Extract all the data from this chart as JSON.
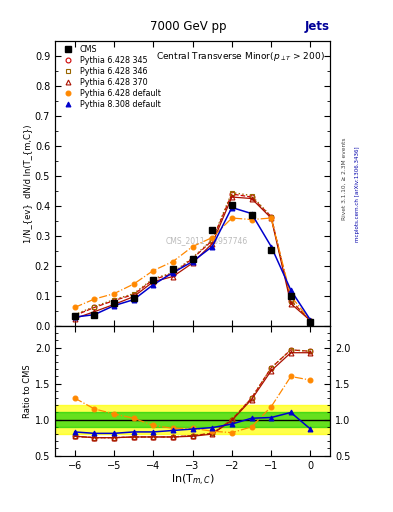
{
  "title_top": "7000 GeV pp",
  "title_right": "Jets",
  "plot_title": "Central Transverse Minor(p_{#surT} > 200)",
  "xlabel": "ln(T_{m,C})",
  "ylabel_main": "1/N_{ev}  dN/d ln(T_{m,C})",
  "ylabel_ratio": "Ratio to CMS",
  "watermark": "CMS_2011_S8957746",
  "rivet_label": "Rivet 3.1.10, ≥ 2.3M events",
  "arxiv_label": "mcplots.cern.ch [arXiv:1306.3436]",
  "x_main": [
    -6.0,
    -5.5,
    -5.0,
    -4.5,
    -4.0,
    -3.5,
    -3.0,
    -2.5,
    -2.0,
    -1.5,
    -1.0,
    -0.5,
    0.0
  ],
  "cms_y": [
    0.033,
    0.038,
    0.077,
    0.095,
    0.155,
    0.19,
    0.225,
    0.32,
    0.405,
    0.37,
    0.255,
    0.1,
    0.015
  ],
  "p345_y": [
    0.035,
    0.062,
    0.085,
    0.105,
    0.155,
    0.175,
    0.225,
    0.285,
    0.44,
    0.43,
    0.365,
    0.085,
    0.018
  ],
  "p346_y": [
    0.038,
    0.065,
    0.088,
    0.108,
    0.158,
    0.178,
    0.228,
    0.288,
    0.445,
    0.435,
    0.365,
    0.085,
    0.018
  ],
  "p370_y": [
    0.025,
    0.048,
    0.072,
    0.098,
    0.148,
    0.165,
    0.21,
    0.275,
    0.43,
    0.425,
    0.36,
    0.075,
    0.018
  ],
  "pdef_y": [
    0.062,
    0.09,
    0.108,
    0.14,
    0.185,
    0.215,
    0.265,
    0.295,
    0.36,
    0.355,
    0.36,
    0.1,
    0.018
  ],
  "p8def_y": [
    0.03,
    0.038,
    0.068,
    0.088,
    0.138,
    0.178,
    0.215,
    0.265,
    0.395,
    0.375,
    0.265,
    0.12,
    0.02
  ],
  "x_ratio": [
    -6.0,
    -5.5,
    -5.0,
    -4.5,
    -4.0,
    -3.5,
    -3.0,
    -2.5,
    -2.0,
    -1.5,
    -1.0,
    -0.5,
    0.0
  ],
  "r345_y": [
    0.77,
    0.75,
    0.75,
    0.76,
    0.76,
    0.76,
    0.78,
    0.81,
    1.0,
    1.3,
    1.72,
    1.97,
    1.95
  ],
  "r346_y": [
    0.77,
    0.75,
    0.75,
    0.76,
    0.76,
    0.76,
    0.78,
    0.81,
    1.0,
    1.3,
    1.72,
    1.97,
    1.95
  ],
  "r370_y": [
    0.77,
    0.75,
    0.75,
    0.76,
    0.76,
    0.76,
    0.77,
    0.8,
    0.99,
    1.28,
    1.68,
    1.93,
    1.93
  ],
  "rdef_y": [
    1.3,
    1.15,
    1.08,
    1.02,
    0.92,
    0.88,
    0.88,
    0.84,
    0.82,
    0.9,
    1.18,
    1.6,
    1.55
  ],
  "r8def_y": [
    0.83,
    0.81,
    0.81,
    0.83,
    0.83,
    0.85,
    0.87,
    0.89,
    0.94,
    1.02,
    1.03,
    1.1,
    0.87
  ],
  "cms_color": "#000000",
  "p345_color": "#cc0000",
  "p346_color": "#996600",
  "p370_color": "#aa1100",
  "pdef_color": "#ff8800",
  "p8def_color": "#0000cc",
  "band_yellow": [
    0.8,
    1.2
  ],
  "band_green": [
    0.9,
    1.1
  ],
  "ylim_main": [
    0.0,
    0.95
  ],
  "ylim_ratio": [
    0.5,
    2.3
  ],
  "xlim": [
    -6.5,
    0.5
  ],
  "yticks_main": [
    0.0,
    0.1,
    0.2,
    0.3,
    0.4,
    0.5,
    0.6,
    0.7,
    0.8,
    0.9
  ],
  "yticks_ratio": [
    0.5,
    1.0,
    1.5,
    2.0
  ],
  "xticks": [
    -6,
    -5,
    -4,
    -3,
    -2,
    -1,
    0
  ]
}
